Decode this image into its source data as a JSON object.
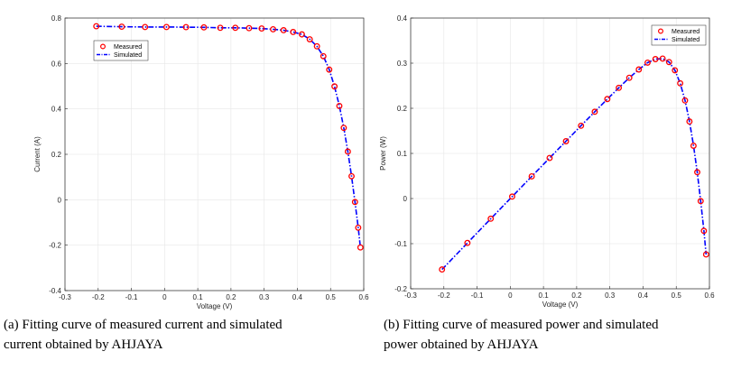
{
  "chart_data": [
    {
      "type": "line",
      "title": "",
      "xlabel": "Voltage (V)",
      "ylabel": "Current (A)",
      "xlim": [
        -0.3,
        0.6
      ],
      "ylim": [
        -0.4,
        0.8
      ],
      "xticks": [
        "-0.3",
        "-0.2",
        "-0.1",
        "0",
        "0.1",
        "0.2",
        "0.3",
        "0.4",
        "0.5",
        "0.6"
      ],
      "yticks": [
        "-0.4",
        "-0.2",
        "0",
        "0.2",
        "0.4",
        "0.6",
        "0.8"
      ],
      "grid": true,
      "legend": "top-left",
      "caption": "(a) Fitting curve of measured current and simulated current obtained by AHJAYA",
      "caption_lines": [
        "(a) Fitting curve of measured current and simulated",
        "current obtained by AHJAYA"
      ],
      "colors": {
        "measured": "#ff0000",
        "simulated": "#0000ff"
      },
      "series": [
        {
          "name": "Measured",
          "style": "markers",
          "x": [
            -0.2057,
            -0.1291,
            -0.0588,
            0.0057,
            0.0646,
            0.1185,
            0.1678,
            0.2132,
            0.2545,
            0.2924,
            0.3269,
            0.3585,
            0.3873,
            0.4137,
            0.4373,
            0.459,
            0.4784,
            0.496,
            0.5119,
            0.5265,
            0.5398,
            0.5521,
            0.5633,
            0.5736,
            0.5833,
            0.59
          ],
          "y": [
            0.764,
            0.762,
            0.7605,
            0.7605,
            0.76,
            0.759,
            0.757,
            0.757,
            0.7555,
            0.754,
            0.7505,
            0.7465,
            0.7385,
            0.728,
            0.7065,
            0.6755,
            0.632,
            0.573,
            0.499,
            0.413,
            0.3165,
            0.212,
            0.1035,
            -0.01,
            -0.123,
            -0.21
          ]
        },
        {
          "name": "Simulated",
          "style": "dash-dot",
          "x": [
            -0.2057,
            -0.1291,
            -0.0588,
            0.0057,
            0.0646,
            0.1185,
            0.1678,
            0.2132,
            0.2545,
            0.2924,
            0.3269,
            0.3585,
            0.3873,
            0.4137,
            0.4373,
            0.459,
            0.4784,
            0.496,
            0.5119,
            0.5265,
            0.5398,
            0.5521,
            0.5633,
            0.5736,
            0.5833,
            0.59
          ],
          "y": [
            0.764,
            0.762,
            0.7605,
            0.7605,
            0.76,
            0.759,
            0.757,
            0.757,
            0.7555,
            0.754,
            0.7505,
            0.7465,
            0.7385,
            0.728,
            0.7065,
            0.6755,
            0.632,
            0.573,
            0.499,
            0.413,
            0.3165,
            0.212,
            0.1035,
            -0.01,
            -0.123,
            -0.21
          ]
        }
      ]
    },
    {
      "type": "line",
      "title": "",
      "xlabel": "Voltage (V)",
      "ylabel": "Power (W)",
      "xlim": [
        -0.3,
        0.6
      ],
      "ylim": [
        -0.2,
        0.4
      ],
      "xticks": [
        "-0.3",
        "-0.2",
        "-0.1",
        "0",
        "0.1",
        "0.2",
        "0.3",
        "0.4",
        "0.5",
        "0.6"
      ],
      "yticks": [
        "-0.2",
        "-0.1",
        "0",
        "0.1",
        "0.2",
        "0.3",
        "0.4"
      ],
      "grid": true,
      "legend": "top-right",
      "caption": "(b) Fitting curve of measured power and simulated power obtained by AHJAYA",
      "caption_lines": [
        "(b) Fitting curve of measured power and simulated",
        "power obtained by AHJAYA"
      ],
      "colors": {
        "measured": "#ff0000",
        "simulated": "#0000ff"
      },
      "series": [
        {
          "name": "Measured",
          "style": "markers",
          "x": [
            -0.2057,
            -0.1291,
            -0.0588,
            0.0057,
            0.0646,
            0.1185,
            0.1678,
            0.2132,
            0.2545,
            0.2924,
            0.3269,
            0.3585,
            0.3873,
            0.4137,
            0.4373,
            0.459,
            0.4784,
            0.496,
            0.5119,
            0.5265,
            0.5398,
            0.5521,
            0.5633,
            0.5736,
            0.5833,
            0.59
          ],
          "y": [
            -0.1572,
            -0.0984,
            -0.0447,
            0.0043,
            0.0491,
            0.0899,
            0.127,
            0.1614,
            0.1923,
            0.2205,
            0.2453,
            0.2676,
            0.286,
            0.3012,
            0.309,
            0.3101,
            0.3024,
            0.2842,
            0.2554,
            0.2174,
            0.1708,
            0.117,
            0.0583,
            -0.0057,
            -0.0717,
            -0.1239
          ]
        },
        {
          "name": "Simulated",
          "style": "dash-dot",
          "x": [
            -0.2057,
            -0.1291,
            -0.0588,
            0.0057,
            0.0646,
            0.1185,
            0.1678,
            0.2132,
            0.2545,
            0.2924,
            0.3269,
            0.3585,
            0.3873,
            0.4137,
            0.4373,
            0.459,
            0.4784,
            0.496,
            0.5119,
            0.5265,
            0.5398,
            0.5521,
            0.5633,
            0.5736,
            0.5833,
            0.59
          ],
          "y": [
            -0.1572,
            -0.0984,
            -0.0447,
            0.0043,
            0.0491,
            0.0899,
            0.127,
            0.1614,
            0.1923,
            0.2205,
            0.2453,
            0.2676,
            0.286,
            0.3012,
            0.309,
            0.3101,
            0.3024,
            0.2842,
            0.2554,
            0.2174,
            0.1708,
            0.117,
            0.0583,
            -0.0057,
            -0.0717,
            -0.1239
          ]
        }
      ]
    }
  ]
}
